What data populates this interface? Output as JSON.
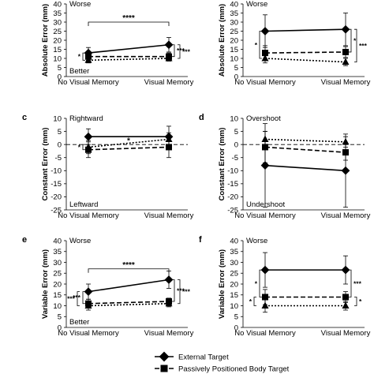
{
  "legend": [
    {
      "label": "External Target",
      "marker": "diamond",
      "dash": "solid"
    },
    {
      "label": "Passively Positioned Body Target",
      "marker": "square",
      "dash": "longdash"
    }
  ],
  "chart_data": [
    {
      "panel": "",
      "type": "line",
      "categories": [
        "No Visual Memory",
        "Visual Memory"
      ],
      "ylabel": "Absolute Error (mm)",
      "ylim": [
        0,
        40
      ],
      "yticks": [
        0,
        5,
        10,
        15,
        20,
        25,
        30,
        35,
        40
      ],
      "notes_top": "Worse",
      "notes_bottom": "Better",
      "series": [
        {
          "name": "External Target",
          "values": [
            13,
            17.5
          ],
          "err": [
            3,
            4
          ]
        },
        {
          "name": "Passively Positioned Body Target",
          "values": [
            11,
            11
          ],
          "err": [
            2,
            2
          ]
        },
        {
          "name": "",
          "values": [
            9,
            10
          ],
          "err": [
            1.5,
            1.5
          ]
        }
      ],
      "annotations": [
        {
          "text": "****",
          "kind": "top-bracket",
          "y": 30
        },
        {
          "text": "*",
          "kind": "left-bracket",
          "cat": 0,
          "y0": 9,
          "y1": 13
        },
        {
          "text": "***",
          "kind": "right-bracket",
          "cat": 1,
          "y0": 11,
          "y1": 17.5
        },
        {
          "text": "***",
          "kind": "right-bracket-outer",
          "cat": 1,
          "y0": 10,
          "y1": 17.5
        }
      ]
    },
    {
      "panel": "",
      "type": "line",
      "categories": [
        "No Visual Memory",
        "Visual Memory"
      ],
      "ylabel": "Absolute Error (mm)",
      "ylim": [
        0,
        40
      ],
      "yticks": [
        0,
        5,
        10,
        15,
        20,
        25,
        30,
        35,
        40
      ],
      "notes_top": "Worse",
      "notes_bottom": "",
      "series": [
        {
          "name": "External Target",
          "values": [
            25,
            26
          ],
          "err": [
            9,
            9
          ]
        },
        {
          "name": "Passively Positioned Body Target",
          "values": [
            13,
            13.5
          ],
          "err": [
            4,
            3
          ]
        },
        {
          "name": "",
          "values": [
            10,
            8
          ],
          "err": [
            2.5,
            2
          ]
        }
      ],
      "annotations": [
        {
          "text": "*",
          "kind": "left-bracket",
          "cat": 0,
          "y0": 10,
          "y1": 25
        },
        {
          "text": "*",
          "kind": "right-bracket",
          "cat": 1,
          "y0": 13.5,
          "y1": 26
        },
        {
          "text": "***",
          "kind": "right-bracket-outer",
          "cat": 1,
          "y0": 8,
          "y1": 26
        }
      ]
    },
    {
      "panel": "c",
      "type": "line",
      "categories": [
        "No Visual Memory",
        "Visual Memory"
      ],
      "ylabel": "Constant Error (mm)",
      "ylim": [
        -25,
        10
      ],
      "yticks": [
        -25,
        -20,
        -15,
        -10,
        -5,
        0,
        5,
        10
      ],
      "notes_top": "Rightward",
      "notes_bottom": "Leftward",
      "series": [
        {
          "name": "External Target",
          "values": [
            3,
            3
          ],
          "err": [
            3,
            4
          ]
        },
        {
          "name": "Passively Positioned Body Target",
          "values": [
            -2,
            -1
          ],
          "err": [
            3,
            4
          ]
        },
        {
          "name": "",
          "values": [
            -1,
            2
          ],
          "err": [
            2.5,
            2.5
          ]
        }
      ],
      "annotations": [
        {
          "text": "*",
          "kind": "mid",
          "cat": 0.5,
          "y": 0.5
        },
        {
          "text": "*",
          "kind": "left-bracket",
          "cat": 0,
          "y0": -2,
          "y1": 0
        }
      ]
    },
    {
      "panel": "d",
      "type": "line",
      "categories": [
        "No Visual Memory",
        "Visual Memory"
      ],
      "ylabel": "Constant Error (mm)",
      "ylim": [
        -25,
        10
      ],
      "yticks": [
        -25,
        -20,
        -15,
        -10,
        -5,
        0,
        5,
        10
      ],
      "notes_top": "Overshoot",
      "notes_bottom": "Undershoot",
      "series": [
        {
          "name": "External Target",
          "values": [
            -8,
            -10
          ],
          "err": [
            16,
            14
          ]
        },
        {
          "name": "Passively Positioned Body Target",
          "values": [
            -1,
            -3
          ],
          "err": [
            6,
            3
          ]
        },
        {
          "name": "",
          "values": [
            2,
            1
          ],
          "err": [
            3,
            2
          ]
        }
      ],
      "annotations": []
    },
    {
      "panel": "e",
      "type": "line",
      "categories": [
        "No Visual Memory",
        "Visual Memory"
      ],
      "ylabel": "Variable Error (mm)",
      "ylim": [
        0,
        40
      ],
      "yticks": [
        0,
        5,
        10,
        15,
        20,
        25,
        30,
        35,
        40
      ],
      "notes_top": "Worse",
      "notes_bottom": "Better",
      "series": [
        {
          "name": "External Target",
          "values": [
            16.5,
            22
          ],
          "err": [
            3.5,
            4
          ]
        },
        {
          "name": "Passively Positioned Body Target",
          "values": [
            11,
            12
          ],
          "err": [
            2,
            1.5
          ]
        },
        {
          "name": "",
          "values": [
            10,
            11
          ],
          "err": [
            2,
            1.5
          ]
        }
      ],
      "annotations": [
        {
          "text": "****",
          "kind": "top-bracket",
          "y": 27
        },
        {
          "text": "***",
          "kind": "left-bracket",
          "cat": 0,
          "y0": 11,
          "y1": 16.5
        },
        {
          "text": "***",
          "kind": "left-bracket-outer",
          "cat": 0,
          "y0": 10,
          "y1": 16.5
        },
        {
          "text": "***",
          "kind": "right-bracket",
          "cat": 1,
          "y0": 12,
          "y1": 22
        },
        {
          "text": "***",
          "kind": "right-bracket-outer",
          "cat": 1,
          "y0": 11,
          "y1": 22
        }
      ]
    },
    {
      "panel": "f",
      "type": "line",
      "categories": [
        "No Visual Memory",
        "Visual Memory"
      ],
      "ylabel": "Variable Error (mm)",
      "ylim": [
        0,
        40
      ],
      "yticks": [
        0,
        5,
        10,
        15,
        20,
        25,
        30,
        35,
        40
      ],
      "notes_top": "Worse",
      "notes_bottom": "",
      "series": [
        {
          "name": "External Target",
          "values": [
            26.5,
            26.5
          ],
          "err": [
            8,
            6.5
          ]
        },
        {
          "name": "Passively Positioned Body Target",
          "values": [
            14,
            14
          ],
          "err": [
            3.5,
            2.5
          ]
        },
        {
          "name": "",
          "values": [
            10,
            10
          ],
          "err": [
            3,
            2
          ]
        }
      ],
      "annotations": [
        {
          "text": "*",
          "kind": "left-bracket",
          "cat": 0,
          "y0": 14,
          "y1": 26.5
        },
        {
          "text": "*",
          "kind": "left-bracket-outer",
          "cat": 0,
          "y0": 10,
          "y1": 14
        },
        {
          "text": "***",
          "kind": "right-bracket",
          "cat": 1,
          "y0": 14,
          "y1": 26.5
        },
        {
          "text": "*",
          "kind": "right-bracket-outer",
          "cat": 1,
          "y0": 10,
          "y1": 14
        }
      ]
    }
  ]
}
